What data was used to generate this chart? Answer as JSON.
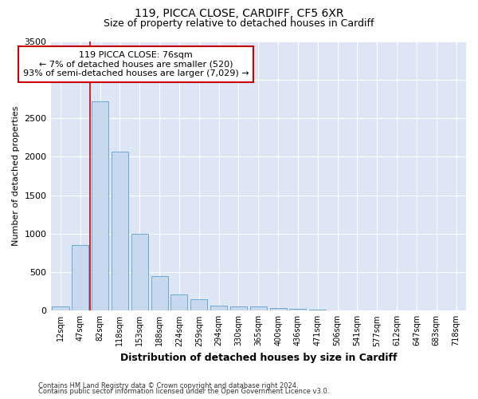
{
  "title1": "119, PICCA CLOSE, CARDIFF, CF5 6XR",
  "title2": "Size of property relative to detached houses in Cardiff",
  "xlabel": "Distribution of detached houses by size in Cardiff",
  "ylabel": "Number of detached properties",
  "categories": [
    "12sqm",
    "47sqm",
    "82sqm",
    "118sqm",
    "153sqm",
    "188sqm",
    "224sqm",
    "259sqm",
    "294sqm",
    "330sqm",
    "365sqm",
    "400sqm",
    "436sqm",
    "471sqm",
    "506sqm",
    "541sqm",
    "577sqm",
    "612sqm",
    "647sqm",
    "683sqm",
    "718sqm"
  ],
  "values": [
    60,
    850,
    2720,
    2060,
    1000,
    450,
    210,
    150,
    65,
    55,
    50,
    35,
    25,
    10,
    0,
    0,
    0,
    0,
    0,
    0,
    0
  ],
  "bar_color": "#c8d8ee",
  "bar_edge_color": "#6fa8d0",
  "vline_color": "#cc0000",
  "vline_x_index": 2,
  "annotation_line1": "119 PICCA CLOSE: 76sqm",
  "annotation_line2": "← 7% of detached houses are smaller (520)",
  "annotation_line3": "93% of semi-detached houses are larger (7,029) →",
  "annotation_box_facecolor": "#ffffff",
  "annotation_box_edgecolor": "#cc0000",
  "ylim": [
    0,
    3500
  ],
  "yticks": [
    0,
    500,
    1000,
    1500,
    2000,
    2500,
    3000,
    3500
  ],
  "plot_bg_color": "#dce6f5",
  "fig_bg_color": "#ffffff",
  "grid_color": "#ffffff",
  "footer1": "Contains HM Land Registry data © Crown copyright and database right 2024.",
  "footer2": "Contains public sector information licensed under the Open Government Licence v3.0.",
  "title1_fontsize": 10,
  "title2_fontsize": 9,
  "xlabel_fontsize": 9,
  "ylabel_fontsize": 8,
  "tick_fontsize": 7,
  "footer_fontsize": 6,
  "annotation_fontsize": 8
}
